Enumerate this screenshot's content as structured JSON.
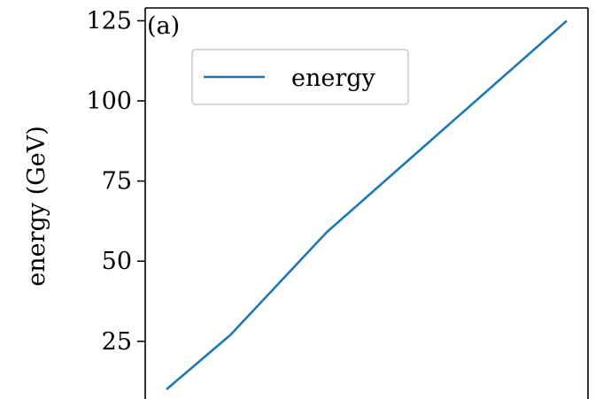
{
  "chart_data": {
    "type": "line",
    "panel_label": "(a)",
    "ylabel": "energy (GeV)",
    "xlabel": "",
    "ylim": [
      7,
      129
    ],
    "yticks": [
      25,
      50,
      75,
      100,
      125
    ],
    "ytick_labels": [
      "25",
      "50",
      "75",
      "100",
      "125"
    ],
    "grid": false,
    "legend": {
      "placement": "upper-left",
      "entries": [
        "energy"
      ]
    },
    "series": [
      {
        "name": "energy",
        "color": "#1f77b4",
        "x": [
          0,
          0.16,
          0.4,
          0.7,
          1.0
        ],
        "y": [
          10,
          27,
          59,
          92,
          125
        ]
      }
    ]
  }
}
